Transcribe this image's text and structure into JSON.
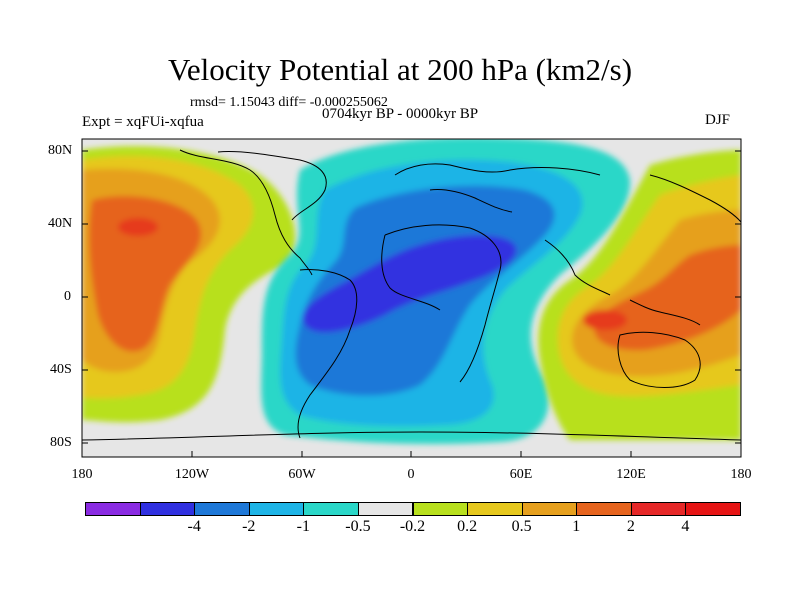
{
  "header": {
    "title": "Velocity Potential at 200 hPa (km2/s)",
    "rmsd_text": "rmsd= 1.15043 diff= -0.000255062",
    "subtitle": "0704kyr BP - 0000kyr BP",
    "experiment": "Expt = xqFUi-xqfua",
    "season": "DJF"
  },
  "axes": {
    "lat_ticks": [
      "80N",
      "40N",
      "0",
      "40S",
      "80S"
    ],
    "lon_ticks": [
      "180",
      "120W",
      "60W",
      "0",
      "60E",
      "120E",
      "180"
    ]
  },
  "colorbar": {
    "colors": [
      "#8a2be2",
      "#3030e0",
      "#1e78d8",
      "#1eb4e6",
      "#2ad7c8",
      "#e6e6e6",
      "#b8e01e",
      "#e6c81e",
      "#e6a01e",
      "#e6641e",
      "#e62828",
      "#e61414"
    ],
    "labels": [
      "-4",
      "-2",
      "-1",
      "-0.5",
      "-0.2",
      "0.2",
      "0.5",
      "1",
      "2",
      "4"
    ]
  },
  "map_colors": {
    "background": "#e6e6e6",
    "coastline": "#000000"
  }
}
